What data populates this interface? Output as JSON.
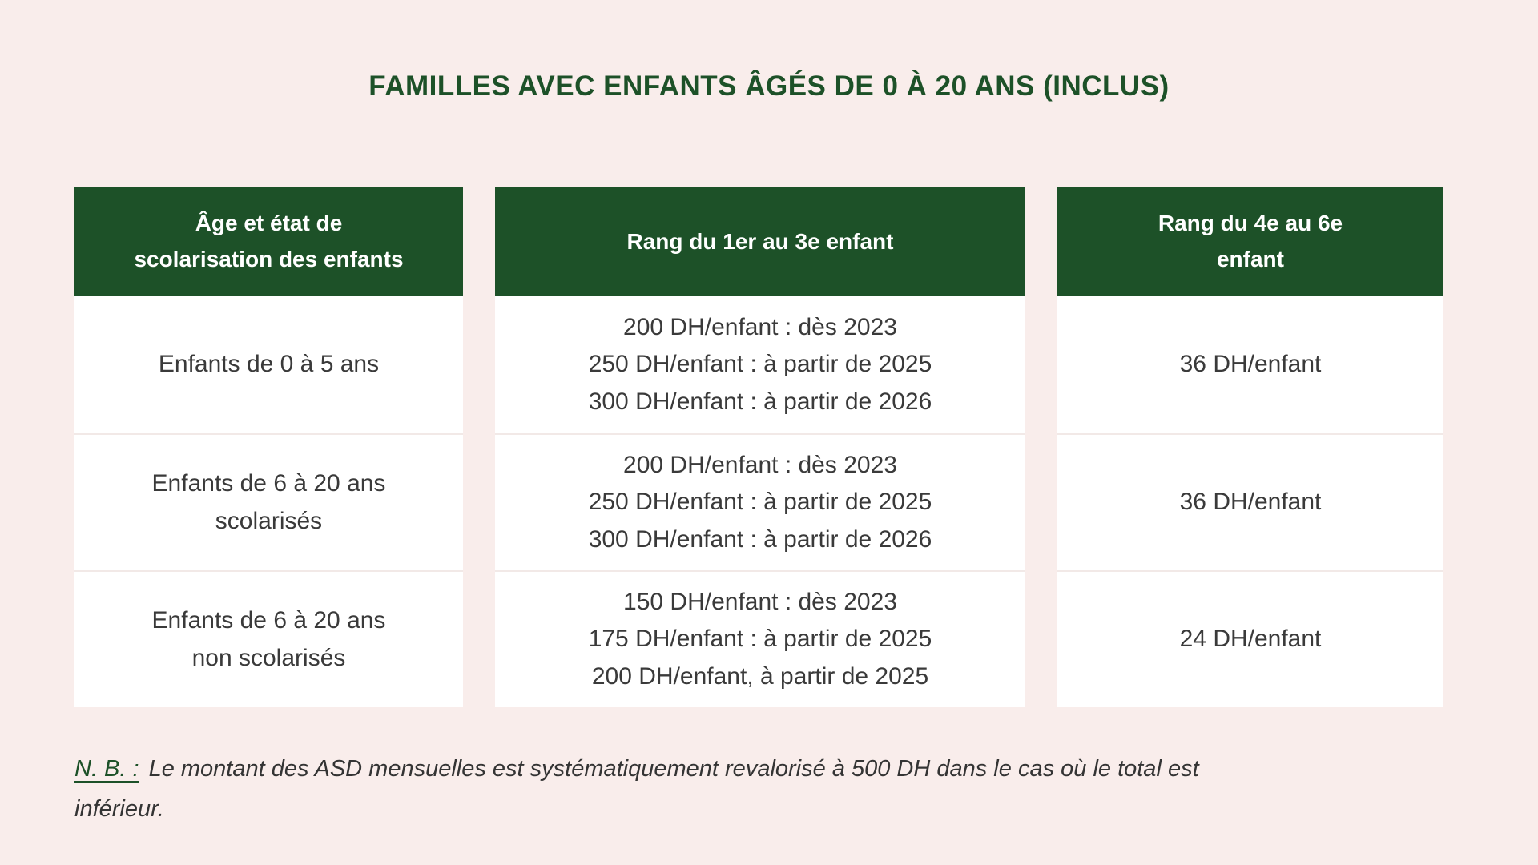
{
  "page": {
    "title": "FAMILLES AVEC ENFANTS ÂGÉS DE 0 À 20 ANS (INCLUS)"
  },
  "colors": {
    "background": "#f9edeb",
    "header_green": "#1d5128",
    "title_green": "#1d5128",
    "header_text": "#ffffff",
    "body_text": "#3a3a3a",
    "cell_background": "#ffffff",
    "row_separator": "#f2e9e7"
  },
  "table": {
    "columns": [
      {
        "header_lines": [
          "Âge et état de",
          "scolarisation des enfants"
        ],
        "rows": [
          [
            "Enfants de 0 à 5 ans"
          ],
          [
            "Enfants de 6 à 20 ans",
            "scolarisés"
          ],
          [
            "Enfants de 6 à 20 ans",
            "non scolarisés"
          ]
        ]
      },
      {
        "header_lines": [
          "Rang du 1er au 3e enfant"
        ],
        "rows": [
          [
            "200 DH/enfant : dès 2023",
            "250 DH/enfant : à partir de 2025",
            "300 DH/enfant : à partir de 2026"
          ],
          [
            "200 DH/enfant : dès 2023",
            "250 DH/enfant : à partir de 2025",
            "300 DH/enfant : à partir de 2026"
          ],
          [
            "150 DH/enfant : dès 2023",
            "175 DH/enfant : à partir de 2025",
            "200 DH/enfant, à partir de 2025"
          ]
        ]
      },
      {
        "header_lines": [
          "Rang du 4e au 6e",
          "enfant"
        ],
        "rows": [
          [
            "36 DH/enfant"
          ],
          [
            "36 DH/enfant"
          ],
          [
            "24 DH/enfant"
          ]
        ]
      }
    ]
  },
  "note": {
    "label": "N. B. :",
    "text": "Le montant des ASD mensuelles est systématiquement revalorisé à 500 DH dans le cas où le total est inférieur."
  }
}
